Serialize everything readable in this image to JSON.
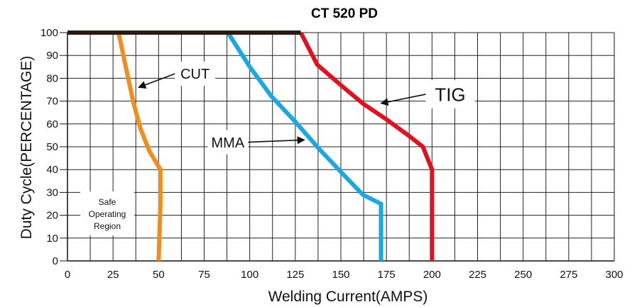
{
  "chart_data": {
    "type": "line",
    "title": "CT 520 PD",
    "xlabel": "Welding Current(AMPS)",
    "ylabel": "Duty Cycle(PERCENTAGE)",
    "xlim": [
      0,
      300
    ],
    "ylim": [
      0,
      100
    ],
    "x_ticks": [
      "0",
      "25",
      "50",
      "75",
      "100",
      "125",
      "150",
      "175",
      "200",
      "225",
      "250",
      "275",
      "300"
    ],
    "y_ticks": [
      "0",
      "10",
      "20",
      "30",
      "40",
      "50",
      "60",
      "70",
      "80",
      "90",
      "100"
    ],
    "grid": true,
    "series": [
      {
        "name": "CUT",
        "color": "#F28C1A",
        "points": [
          [
            28,
            100
          ],
          [
            32,
            85
          ],
          [
            36,
            70
          ],
          [
            40,
            58
          ],
          [
            45,
            48
          ],
          [
            51,
            40
          ],
          [
            51,
            25
          ],
          [
            50,
            0
          ]
        ]
      },
      {
        "name": "MMA",
        "color": "#1AA7E6",
        "points": [
          [
            88,
            100
          ],
          [
            100,
            85
          ],
          [
            112,
            72
          ],
          [
            125,
            61
          ],
          [
            137,
            50
          ],
          [
            150,
            39
          ],
          [
            162,
            29
          ],
          [
            172,
            25
          ],
          [
            172,
            0
          ]
        ]
      },
      {
        "name": "TIG",
        "color": "#E3101E",
        "points": [
          [
            128,
            100
          ],
          [
            137,
            86
          ],
          [
            150,
            77
          ],
          [
            162,
            69
          ],
          [
            175,
            62
          ],
          [
            187,
            55
          ],
          [
            195,
            50
          ],
          [
            200,
            40
          ],
          [
            200,
            0
          ]
        ]
      },
      {
        "name": "",
        "color": "#2B1A14",
        "points": [
          [
            0,
            100
          ],
          [
            128,
            100
          ]
        ]
      }
    ],
    "annotations": [
      {
        "label": "CUT",
        "text_at": [
          70,
          82
        ],
        "arrow_to": [
          39,
          76
        ]
      },
      {
        "label": "MMA",
        "text_at": [
          88,
          52
        ],
        "arrow_to": [
          130,
          53
        ]
      },
      {
        "label": "TIG",
        "text_at": [
          210,
          73
        ],
        "arrow_to": [
          172,
          69
        ]
      }
    ],
    "region_label": "Safe Operating Region"
  },
  "region_lines": [
    "Safe",
    "Operating",
    "Region"
  ]
}
